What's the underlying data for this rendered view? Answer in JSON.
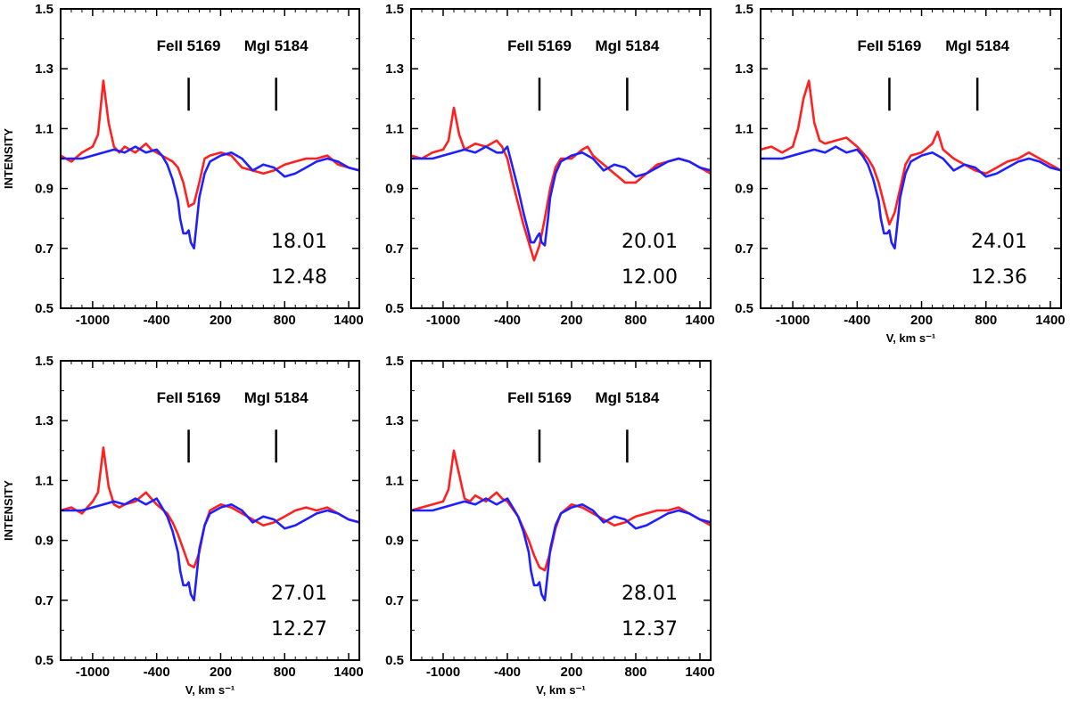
{
  "chart_data": [
    {
      "type": "line",
      "title": "",
      "ylabel": "INTENSITY",
      "xlabel": "",
      "xlim": [
        -1300,
        1500
      ],
      "ylim": [
        0.5,
        1.5
      ],
      "xticks": [
        -1000,
        -400,
        200,
        800,
        1400
      ],
      "xtick_labels": [
        "-1000",
        "-400",
        "200",
        "800",
        "1400"
      ],
      "yticks": [
        0.5,
        0.7,
        0.9,
        1.1,
        1.3,
        1.5
      ],
      "ytick_labels": [
        "0.5",
        "0.7",
        "0.9",
        "1.1",
        "1.3",
        "1.5"
      ],
      "line_markers": [
        {
          "label": "FeII 5169",
          "x": -100
        },
        {
          "label": "MgI 5184",
          "x": 720
        }
      ],
      "annotations": [
        "18.01",
        "12.48"
      ],
      "series": [
        {
          "color": "#ff2020",
          "x": [
            -1300,
            -1200,
            -1100,
            -1000,
            -950,
            -900,
            -850,
            -800,
            -750,
            -700,
            -600,
            -500,
            -450,
            -400,
            -300,
            -250,
            -200,
            -150,
            -100,
            -50,
            0,
            50,
            100,
            200,
            300,
            400,
            500,
            600,
            700,
            800,
            900,
            1000,
            1100,
            1200,
            1300,
            1400,
            1500
          ],
          "y": [
            1.01,
            0.99,
            1.02,
            1.04,
            1.08,
            1.26,
            1.12,
            1.04,
            1.02,
            1.04,
            1.02,
            1.05,
            1.03,
            1.02,
            1.0,
            0.99,
            0.97,
            0.92,
            0.84,
            0.85,
            0.92,
            1.0,
            1.01,
            1.02,
            1.01,
            0.97,
            0.96,
            0.95,
            0.96,
            0.98,
            0.99,
            1.0,
            1.0,
            1.01,
            0.98,
            0.97,
            0.96
          ]
        },
        {
          "color": "#2020ff",
          "x": [
            -1300,
            -1200,
            -1100,
            -1000,
            -900,
            -800,
            -700,
            -600,
            -500,
            -400,
            -350,
            -300,
            -250,
            -200,
            -180,
            -150,
            -120,
            -100,
            -80,
            -50,
            -20,
            0,
            50,
            100,
            200,
            300,
            400,
            500,
            600,
            700,
            800,
            900,
            1000,
            1100,
            1200,
            1300,
            1400,
            1500
          ],
          "y": [
            1.0,
            1.0,
            1.0,
            1.01,
            1.02,
            1.03,
            1.02,
            1.04,
            1.02,
            1.03,
            1.01,
            0.98,
            0.93,
            0.86,
            0.8,
            0.75,
            0.75,
            0.76,
            0.72,
            0.7,
            0.8,
            0.87,
            0.95,
            0.99,
            1.01,
            1.02,
            1.0,
            0.96,
            0.98,
            0.97,
            0.94,
            0.95,
            0.97,
            0.99,
            1.0,
            0.99,
            0.97,
            0.96
          ]
        }
      ]
    },
    {
      "type": "line",
      "title": "",
      "ylabel": "",
      "xlabel": "",
      "xlim": [
        -1300,
        1500
      ],
      "ylim": [
        0.5,
        1.5
      ],
      "xticks": [
        -1000,
        -400,
        200,
        800,
        1400
      ],
      "xtick_labels": [
        "-1000",
        "-400",
        "200",
        "800",
        "1400"
      ],
      "yticks": [
        0.5,
        0.7,
        0.9,
        1.1,
        1.3,
        1.5
      ],
      "ytick_labels": [
        "0.5",
        "0.7",
        "0.9",
        "1.1",
        "1.3",
        "1.5"
      ],
      "line_markers": [
        {
          "label": "FeII 5169",
          "x": -100
        },
        {
          "label": "MgI 5184",
          "x": 720
        }
      ],
      "annotations": [
        "20.01",
        "12.00"
      ],
      "series": [
        {
          "color": "#ff2020",
          "x": [
            -1300,
            -1200,
            -1100,
            -1000,
            -950,
            -900,
            -850,
            -800,
            -750,
            -700,
            -600,
            -500,
            -450,
            -400,
            -350,
            -300,
            -250,
            -200,
            -150,
            -100,
            -50,
            0,
            50,
            100,
            200,
            300,
            350,
            400,
            500,
            600,
            700,
            800,
            900,
            1000,
            1100,
            1200,
            1300,
            1400,
            1500
          ],
          "y": [
            1.01,
            1.0,
            1.02,
            1.03,
            1.06,
            1.17,
            1.08,
            1.03,
            1.04,
            1.05,
            1.04,
            1.06,
            1.04,
            1.0,
            0.92,
            0.85,
            0.78,
            0.72,
            0.66,
            0.71,
            0.8,
            0.9,
            0.97,
            1.0,
            1.0,
            1.03,
            1.04,
            1.01,
            0.98,
            0.95,
            0.92,
            0.92,
            0.95,
            0.98,
            0.99,
            1.0,
            0.99,
            0.97,
            0.95
          ]
        },
        {
          "color": "#2020ff",
          "x": [
            -1300,
            -1200,
            -1100,
            -1000,
            -900,
            -800,
            -700,
            -600,
            -500,
            -450,
            -400,
            -350,
            -300,
            -250,
            -200,
            -180,
            -150,
            -120,
            -100,
            -80,
            -50,
            -20,
            0,
            50,
            100,
            200,
            300,
            400,
            500,
            600,
            700,
            800,
            900,
            1000,
            1100,
            1200,
            1300,
            1400,
            1500
          ],
          "y": [
            1.0,
            1.0,
            1.0,
            1.01,
            1.02,
            1.03,
            1.02,
            1.04,
            1.02,
            1.02,
            1.04,
            0.97,
            0.9,
            0.82,
            0.75,
            0.72,
            0.72,
            0.74,
            0.75,
            0.72,
            0.71,
            0.8,
            0.87,
            0.95,
            0.99,
            1.01,
            1.02,
            1.0,
            0.96,
            0.98,
            0.97,
            0.94,
            0.95,
            0.97,
            0.99,
            1.0,
            0.99,
            0.97,
            0.96
          ]
        }
      ]
    },
    {
      "type": "line",
      "title": "",
      "ylabel": "",
      "xlabel": "V, km s⁻¹",
      "xlim": [
        -1300,
        1500
      ],
      "ylim": [
        0.5,
        1.5
      ],
      "xticks": [
        -1000,
        -400,
        200,
        800,
        1400
      ],
      "xtick_labels": [
        "-1000",
        "-400",
        "200",
        "800",
        "1400"
      ],
      "yticks": [
        0.5,
        0.7,
        0.9,
        1.1,
        1.3,
        1.5
      ],
      "ytick_labels": [
        "0.5",
        "0.7",
        "0.9",
        "1.1",
        "1.3",
        "1.5"
      ],
      "line_markers": [
        {
          "label": "FeII 5169",
          "x": -100
        },
        {
          "label": "MgI 5184",
          "x": 720
        }
      ],
      "annotations": [
        "24.01",
        "12.36"
      ],
      "series": [
        {
          "color": "#ff2020",
          "x": [
            -1300,
            -1200,
            -1100,
            -1000,
            -950,
            -900,
            -850,
            -800,
            -750,
            -700,
            -600,
            -500,
            -400,
            -350,
            -300,
            -250,
            -200,
            -150,
            -100,
            -50,
            0,
            50,
            100,
            200,
            300,
            350,
            400,
            500,
            600,
            700,
            800,
            900,
            1000,
            1100,
            1200,
            1300,
            1400,
            1500
          ],
          "y": [
            1.03,
            1.04,
            1.02,
            1.04,
            1.1,
            1.2,
            1.26,
            1.12,
            1.06,
            1.05,
            1.06,
            1.07,
            1.04,
            1.02,
            1.0,
            0.97,
            0.92,
            0.85,
            0.78,
            0.82,
            0.9,
            0.98,
            1.01,
            1.02,
            1.05,
            1.09,
            1.03,
            1.0,
            0.98,
            0.96,
            0.95,
            0.97,
            0.99,
            1.0,
            1.02,
            1.0,
            0.98,
            0.96
          ]
        },
        {
          "color": "#2020ff",
          "x": [
            -1300,
            -1200,
            -1100,
            -1000,
            -900,
            -800,
            -700,
            -600,
            -500,
            -400,
            -350,
            -300,
            -250,
            -200,
            -180,
            -150,
            -120,
            -100,
            -80,
            -50,
            -20,
            0,
            50,
            100,
            200,
            300,
            400,
            500,
            600,
            700,
            800,
            900,
            1000,
            1100,
            1200,
            1300,
            1400,
            1500
          ],
          "y": [
            1.0,
            1.0,
            1.0,
            1.01,
            1.02,
            1.03,
            1.02,
            1.04,
            1.02,
            1.03,
            1.01,
            0.98,
            0.93,
            0.86,
            0.8,
            0.75,
            0.75,
            0.76,
            0.72,
            0.7,
            0.8,
            0.87,
            0.95,
            0.99,
            1.01,
            1.02,
            1.0,
            0.96,
            0.98,
            0.97,
            0.94,
            0.95,
            0.97,
            0.99,
            1.0,
            0.99,
            0.97,
            0.96
          ]
        }
      ]
    },
    {
      "type": "line",
      "title": "",
      "ylabel": "INTENSITY",
      "xlabel": "V, km s⁻¹",
      "xlim": [
        -1300,
        1500
      ],
      "ylim": [
        0.5,
        1.5
      ],
      "xticks": [
        -1000,
        -400,
        200,
        800,
        1400
      ],
      "xtick_labels": [
        "-1000",
        "-400",
        "200",
        "800",
        "1400"
      ],
      "yticks": [
        0.5,
        0.7,
        0.9,
        1.1,
        1.3,
        1.5
      ],
      "ytick_labels": [
        "0.5",
        "0.7",
        "0.9",
        "1.1",
        "1.3",
        "1.5"
      ],
      "line_markers": [
        {
          "label": "FeII 5169",
          "x": -100
        },
        {
          "label": "MgI 5184",
          "x": 720
        }
      ],
      "annotations": [
        "27.01",
        "12.27"
      ],
      "series": [
        {
          "color": "#ff2020",
          "x": [
            -1300,
            -1200,
            -1100,
            -1000,
            -950,
            -900,
            -850,
            -800,
            -750,
            -700,
            -600,
            -500,
            -450,
            -400,
            -300,
            -250,
            -200,
            -150,
            -100,
            -50,
            0,
            50,
            100,
            200,
            300,
            400,
            500,
            600,
            700,
            800,
            900,
            1000,
            1100,
            1200,
            1300,
            1400,
            1500
          ],
          "y": [
            1.0,
            1.01,
            0.99,
            1.03,
            1.06,
            1.21,
            1.08,
            1.02,
            1.01,
            1.02,
            1.03,
            1.06,
            1.04,
            1.02,
            0.99,
            0.96,
            0.92,
            0.87,
            0.82,
            0.81,
            0.86,
            0.95,
            1.0,
            1.02,
            1.01,
            0.99,
            0.97,
            0.95,
            0.96,
            0.98,
            1.0,
            1.01,
            1.0,
            1.01,
            0.99,
            0.97,
            0.96
          ]
        },
        {
          "color": "#2020ff",
          "x": [
            -1300,
            -1200,
            -1100,
            -1000,
            -900,
            -800,
            -700,
            -600,
            -500,
            -400,
            -350,
            -300,
            -250,
            -200,
            -180,
            -150,
            -120,
            -100,
            -80,
            -50,
            -20,
            0,
            50,
            100,
            200,
            300,
            400,
            500,
            600,
            700,
            800,
            900,
            1000,
            1100,
            1200,
            1300,
            1400,
            1500
          ],
          "y": [
            1.0,
            1.0,
            1.0,
            1.01,
            1.02,
            1.03,
            1.02,
            1.04,
            1.02,
            1.04,
            1.01,
            0.98,
            0.93,
            0.86,
            0.8,
            0.75,
            0.75,
            0.76,
            0.72,
            0.7,
            0.8,
            0.87,
            0.95,
            0.99,
            1.01,
            1.02,
            1.0,
            0.96,
            0.98,
            0.97,
            0.94,
            0.95,
            0.97,
            0.99,
            1.0,
            0.99,
            0.97,
            0.96
          ]
        }
      ]
    },
    {
      "type": "line",
      "title": "",
      "ylabel": "",
      "xlabel": "V, km s⁻¹",
      "xlim": [
        -1300,
        1500
      ],
      "ylim": [
        0.5,
        1.5
      ],
      "xticks": [
        -1000,
        -400,
        200,
        800,
        1400
      ],
      "xtick_labels": [
        "-1000",
        "-400",
        "200",
        "800",
        "1400"
      ],
      "yticks": [
        0.5,
        0.7,
        0.9,
        1.1,
        1.3,
        1.5
      ],
      "ytick_labels": [
        "0.5",
        "0.7",
        "0.9",
        "1.1",
        "1.3",
        "1.5"
      ],
      "line_markers": [
        {
          "label": "FeII 5169",
          "x": -100
        },
        {
          "label": "MgI 5184",
          "x": 720
        }
      ],
      "annotations": [
        "28.01",
        "12.37"
      ],
      "series": [
        {
          "color": "#ff2020",
          "x": [
            -1300,
            -1200,
            -1100,
            -1000,
            -950,
            -900,
            -850,
            -800,
            -750,
            -700,
            -600,
            -500,
            -450,
            -400,
            -300,
            -250,
            -200,
            -150,
            -100,
            -50,
            0,
            50,
            100,
            200,
            300,
            400,
            500,
            600,
            700,
            800,
            900,
            1000,
            1100,
            1200,
            1300,
            1400,
            1500
          ],
          "y": [
            1.0,
            1.01,
            1.02,
            1.03,
            1.07,
            1.2,
            1.12,
            1.04,
            1.03,
            1.05,
            1.03,
            1.06,
            1.04,
            1.03,
            0.98,
            0.94,
            0.9,
            0.85,
            0.81,
            0.8,
            0.86,
            0.94,
            0.99,
            1.02,
            1.01,
            0.99,
            0.97,
            0.95,
            0.96,
            0.98,
            0.99,
            1.0,
            1.0,
            1.01,
            0.99,
            0.97,
            0.95
          ]
        },
        {
          "color": "#2020ff",
          "x": [
            -1300,
            -1200,
            -1100,
            -1000,
            -900,
            -800,
            -700,
            -600,
            -500,
            -400,
            -350,
            -300,
            -250,
            -200,
            -180,
            -150,
            -120,
            -100,
            -80,
            -50,
            -20,
            0,
            50,
            100,
            200,
            300,
            400,
            500,
            600,
            700,
            800,
            900,
            1000,
            1100,
            1200,
            1300,
            1400,
            1500
          ],
          "y": [
            1.0,
            1.0,
            1.0,
            1.01,
            1.02,
            1.03,
            1.02,
            1.04,
            1.02,
            1.04,
            1.01,
            0.98,
            0.93,
            0.86,
            0.8,
            0.75,
            0.75,
            0.76,
            0.72,
            0.7,
            0.8,
            0.87,
            0.95,
            0.99,
            1.01,
            1.02,
            1.0,
            0.96,
            0.98,
            0.97,
            0.94,
            0.95,
            0.97,
            0.99,
            1.0,
            0.99,
            0.97,
            0.96
          ]
        }
      ]
    }
  ]
}
